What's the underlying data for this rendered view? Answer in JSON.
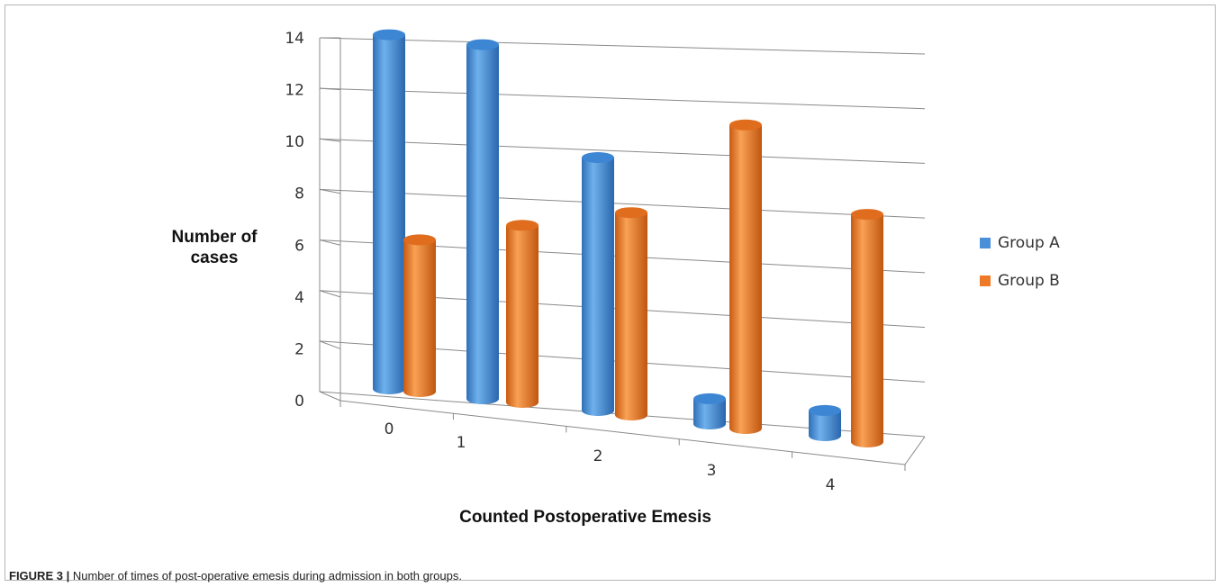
{
  "caption": {
    "label": "FIGURE 3 |",
    "text": "Number of times of post-operative emesis during admission in both groups."
  },
  "chart_data": {
    "type": "bar",
    "style": "3d-cylinder",
    "title": "",
    "xlabel": "Counted Postoperative Emesis",
    "ylabel": "Number of cases",
    "categories": [
      "0",
      "1",
      "2",
      "3",
      "4"
    ],
    "series": [
      {
        "name": "Group A",
        "color": "#4a90d9",
        "values": [
          14,
          14,
          10,
          1,
          1
        ]
      },
      {
        "name": "Group B",
        "color": "#ee7a28",
        "values": [
          6,
          7,
          8,
          12,
          9
        ]
      }
    ],
    "ylim": [
      0,
      14
    ],
    "yticks": [
      0,
      2,
      4,
      6,
      8,
      10,
      12,
      14
    ],
    "grid": true,
    "legend": "right"
  }
}
